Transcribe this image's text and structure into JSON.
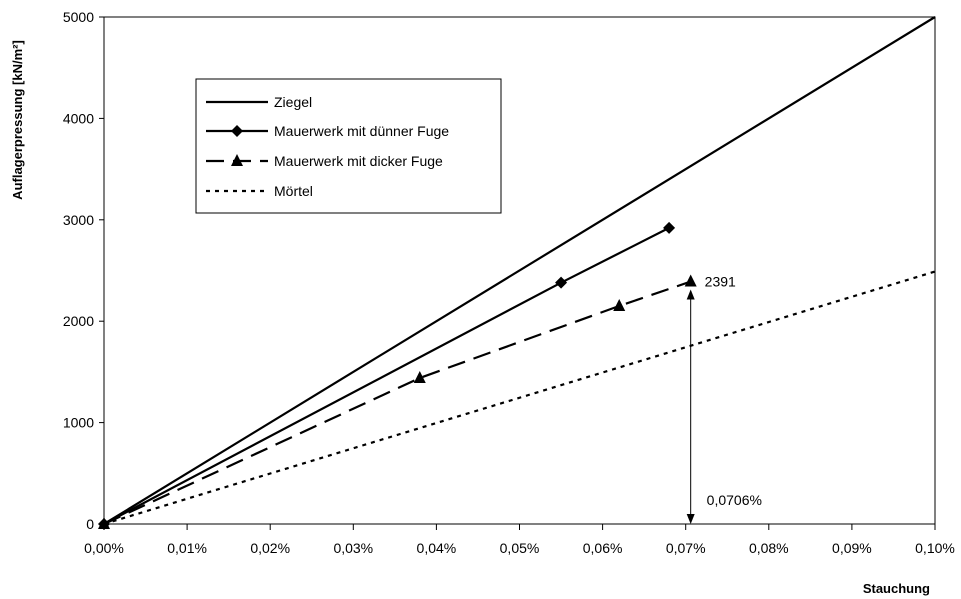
{
  "chart_data": {
    "type": "line",
    "xlabel": "Stauchung",
    "ylabel": "Auflagerpressung [kN/m²]",
    "xlim": [
      0,
      0.1
    ],
    "ylim": [
      0,
      5000
    ],
    "x_ticks": [
      "0,00%",
      "0,01%",
      "0,02%",
      "0,03%",
      "0,04%",
      "0,05%",
      "0,06%",
      "0,07%",
      "0,08%",
      "0,09%",
      "0,10%"
    ],
    "y_ticks": [
      "0",
      "1000",
      "2000",
      "3000",
      "4000",
      "5000"
    ],
    "x_tick_values": [
      0,
      0.01,
      0.02,
      0.03,
      0.04,
      0.05,
      0.06,
      0.07,
      0.08,
      0.09,
      0.1
    ],
    "y_tick_values": [
      0,
      1000,
      2000,
      3000,
      4000,
      5000
    ],
    "grid": false,
    "legend_position": "top-left inside plot",
    "series": [
      {
        "name": "Ziegel",
        "style": "solid",
        "marker": "none",
        "x": [
          0,
          0.1
        ],
        "y": [
          0,
          5000
        ]
      },
      {
        "name": "Mauerwerk mit dünner Fuge",
        "style": "solid",
        "marker": "diamond",
        "x": [
          0,
          0.055,
          0.068
        ],
        "y": [
          0,
          2380,
          2920
        ]
      },
      {
        "name": "Mauerwerk mit dicker Fuge",
        "style": "long-dash",
        "marker": "triangle",
        "x": [
          0,
          0.038,
          0.062,
          0.0706
        ],
        "y": [
          0,
          1440,
          2150,
          2391
        ]
      },
      {
        "name": "Mörtel",
        "style": "dotted",
        "marker": "none",
        "x": [
          0,
          0.1
        ],
        "y": [
          0,
          2490
        ]
      }
    ],
    "annotations": [
      {
        "text": "2391",
        "x": 0.0706,
        "y": 2391
      },
      {
        "text": "0,0706%",
        "x": 0.0706,
        "y": 0
      }
    ]
  }
}
